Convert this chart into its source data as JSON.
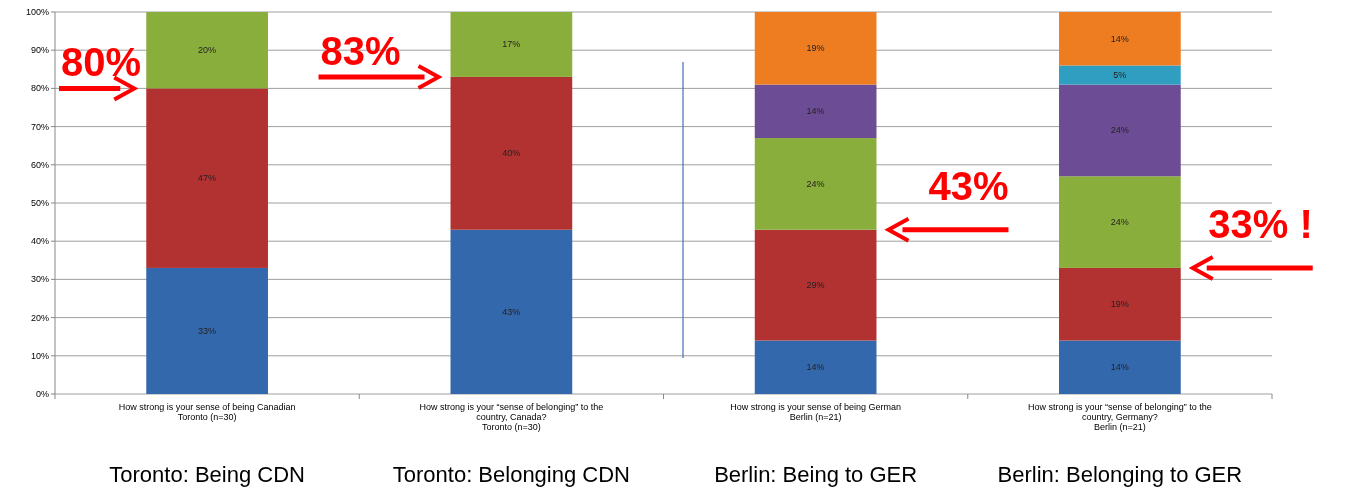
{
  "chart_data": {
    "type": "bar",
    "stacked": true,
    "categories": [
      "How strong is your sense of being Canadian\nToronto (n=30)",
      "How strong is your “sense of belonging” to the\ncountry, Canada?\nToronto (n=30)",
      "How strong is your sense of being German\nBerlin (n=21)",
      "How strong is your “sense of belonging” to the\ncountry, Germany?\nBerlin (n=21)"
    ],
    "series": [
      {
        "color": "#3468ad",
        "values": [
          33,
          43,
          14,
          14
        ],
        "value_labels": [
          "33%",
          "43%",
          "14%",
          "14%"
        ]
      },
      {
        "color": "#b23232",
        "values": [
          47,
          40,
          29,
          19
        ],
        "value_labels": [
          "47%",
          "40%",
          "29%",
          "19%"
        ]
      },
      {
        "color": "#8aae3c",
        "values": [
          20,
          17,
          24,
          24
        ],
        "value_labels": [
          "20%",
          "17%",
          "24%",
          "24%"
        ]
      },
      {
        "color": "#6d4c96",
        "values": [
          0,
          0,
          14,
          24
        ],
        "value_labels": [
          null,
          null,
          "14%",
          "24%"
        ]
      },
      {
        "color": "#2f9ec0",
        "values": [
          0,
          0,
          0,
          5
        ],
        "value_labels": [
          null,
          null,
          null,
          "5%"
        ]
      },
      {
        "color": "#ee7d22",
        "values": [
          0,
          0,
          19,
          14
        ],
        "value_labels": [
          null,
          null,
          "19%",
          "14%"
        ]
      }
    ],
    "ylim": [
      0,
      100
    ],
    "yticks": [
      {
        "value": 0,
        "label": "0%"
      },
      {
        "value": 10,
        "label": "10%"
      },
      {
        "value": 20,
        "label": "20%"
      },
      {
        "value": 30,
        "label": "30%"
      },
      {
        "value": 40,
        "label": "40%"
      },
      {
        "value": 50,
        "label": "50%"
      },
      {
        "value": 60,
        "label": "60%"
      },
      {
        "value": 70,
        "label": "70%"
      },
      {
        "value": 80,
        "label": "80%"
      },
      {
        "value": 90,
        "label": "90%"
      },
      {
        "value": 100,
        "label": "100%"
      }
    ],
    "grid": "y",
    "annotations": [
      {
        "text": "80%",
        "x": "How strong is your sense of being Canadian\nToronto (n=30)",
        "y": 80
      },
      {
        "text": "83%",
        "x": "How strong is your “sense of belonging” to the\ncountry, Canada?\nToronto (n=30)",
        "y": 83
      },
      {
        "text": "43%",
        "x": "How strong is your sense of being German\nBerlin (n=21)",
        "y": 43
      },
      {
        "text": "33% !",
        "x": "How strong is your “sense of belonging” to the\ncountry, Germany?\nBerlin (n=21)",
        "y": 33
      },
      "Toronto: Being CDN",
      "Toronto: Belonging CDN",
      "Berlin: Being to GER",
      "Berlin: Belonging to GER"
    ]
  }
}
